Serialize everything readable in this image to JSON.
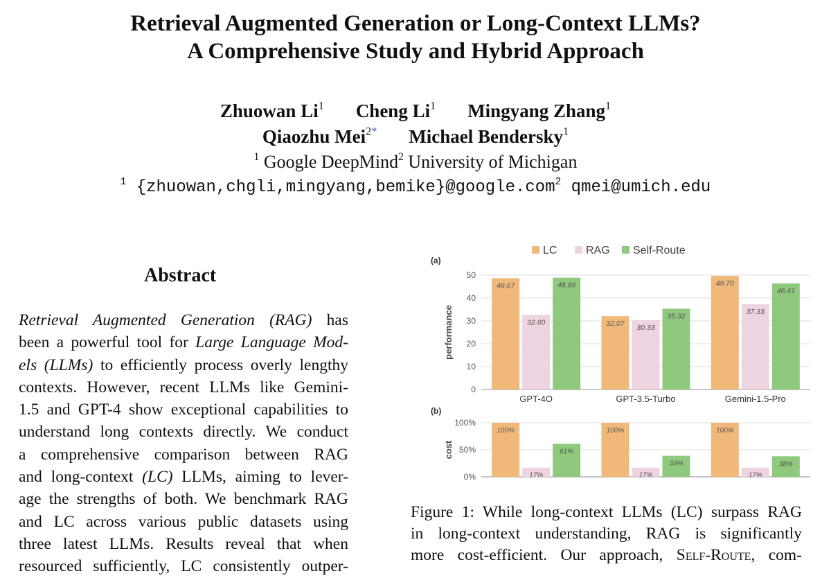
{
  "paper": {
    "title_line1": "Retrieval Augmented Generation or Long-Context LLMs?",
    "title_line2": "A Comprehensive Study and Hybrid Approach",
    "authors_line1": [
      {
        "name": "Zhuowan Li",
        "sup": "1"
      },
      {
        "name": "Cheng Li",
        "sup": "1"
      },
      {
        "name": "Mingyang Zhang",
        "sup": "1"
      }
    ],
    "authors_line2": [
      {
        "name": "Qiaozhu Mei",
        "sup": "2",
        "star": "*"
      },
      {
        "name": "Michael Bendersky",
        "sup": "1"
      }
    ],
    "affiliations": [
      {
        "sup": "1",
        "name": "Google DeepMind"
      },
      {
        "sup": "2",
        "name": "University of Michigan"
      }
    ],
    "emails": [
      {
        "sup": "1",
        "text": "{zhuowan,chgli,mingyang,bemike}@google.com"
      },
      {
        "sup": "2",
        "text": "qmei@umich.edu"
      }
    ]
  },
  "abstract": {
    "heading": "Abstract",
    "lines": [
      [
        {
          "t": "Retrieval Augmented Generation (RAG)",
          "i": true
        },
        {
          "t": " has"
        }
      ],
      [
        {
          "t": "been a powerful tool for "
        },
        {
          "t": "Large Language Mod-",
          "i": true
        }
      ],
      [
        {
          "t": "els (LLMs)",
          "i": true
        },
        {
          "t": " to efficiently process overly lengthy"
        }
      ],
      [
        {
          "t": "contexts. However, recent LLMs like Gemini-"
        }
      ],
      [
        {
          "t": "1.5 and GPT-4 show exceptional capabilities to"
        }
      ],
      [
        {
          "t": "understand long contexts directly. We conduct"
        }
      ],
      [
        {
          "t": "a comprehensive comparison between RAG"
        }
      ],
      [
        {
          "t": "and long-context "
        },
        {
          "t": "(LC)",
          "i": true
        },
        {
          "t": " LLMs, aiming to lever-"
        }
      ],
      [
        {
          "t": "age the strengths of both. We benchmark RAG"
        }
      ],
      [
        {
          "t": "and LC across various public datasets using"
        }
      ],
      [
        {
          "t": "three latest LLMs.  Results reveal that when"
        }
      ],
      [
        {
          "t": "resourced sufficiently, LC consistently outper-"
        }
      ]
    ]
  },
  "caption": {
    "lines": [
      [
        {
          "t": "Figure 1: While long-context LLMs (LC) surpass RAG"
        }
      ],
      [
        {
          "t": "in long-context understanding, RAG is significantly"
        }
      ],
      [
        {
          "t": "more cost-efficient. Our approach, "
        },
        {
          "t": "Self-Route",
          "sc": true
        },
        {
          "t": ", com-"
        }
      ]
    ]
  },
  "chart_data": [
    {
      "type": "bar",
      "panel_label": "(a)",
      "ylabel": "performance",
      "categories": [
        "GPT-4O",
        "GPT-3.5-Turbo",
        "Gemini-1.5-Pro"
      ],
      "ylim": [
        0,
        50
      ],
      "yticks": [
        "0",
        "10",
        "20",
        "30",
        "40",
        "50"
      ],
      "legend_position": "top",
      "series": [
        {
          "name": "LC",
          "color": "#F0B97A",
          "values": [
            48.67,
            32.07,
            49.7
          ],
          "labels": [
            "48.67",
            "32.07",
            "49.70"
          ]
        },
        {
          "name": "RAG",
          "color": "#EED4E0",
          "values": [
            32.6,
            30.33,
            37.33
          ],
          "labels": [
            "32.60",
            "30.33",
            "37.33"
          ]
        },
        {
          "name": "Self-Route",
          "color": "#8FC97E",
          "values": [
            48.89,
            35.32,
            46.41
          ],
          "labels": [
            "48.89",
            "35.32",
            "46.41"
          ]
        }
      ]
    },
    {
      "type": "bar",
      "panel_label": "(b)",
      "ylabel": "cost",
      "categories": [
        "GPT-4O",
        "GPT-3.5-Turbo",
        "Gemini-1.5-Pro"
      ],
      "ylim": [
        0,
        100
      ],
      "yticks": [
        "0%",
        "50%",
        "100%"
      ],
      "series": [
        {
          "name": "LC",
          "color": "#F0B97A",
          "values": [
            100,
            100,
            100
          ],
          "labels": [
            "100%",
            "100%",
            "100%"
          ]
        },
        {
          "name": "RAG",
          "color": "#EED4E0",
          "values": [
            17,
            17,
            17
          ],
          "labels": [
            "17%",
            "17%",
            "17%"
          ]
        },
        {
          "name": "Self-Route",
          "color": "#8FC97E",
          "values": [
            61,
            39,
            38
          ],
          "labels": [
            "61%",
            "39%",
            "38%"
          ]
        }
      ]
    }
  ]
}
